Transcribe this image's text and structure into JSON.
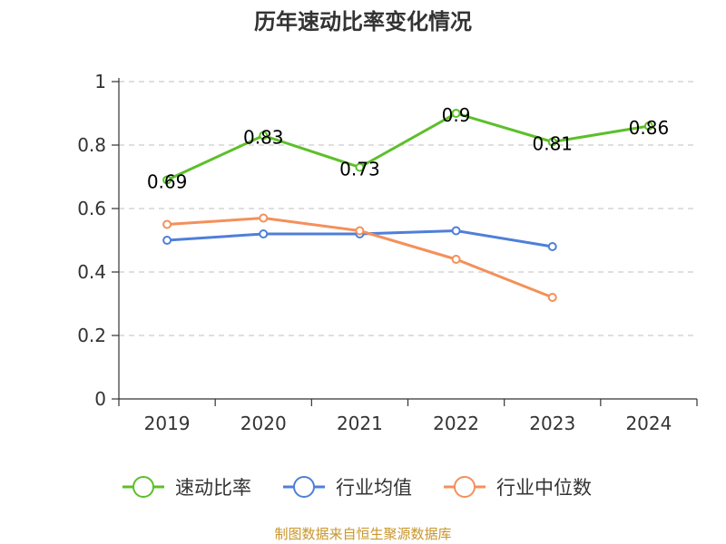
{
  "chart_data": {
    "type": "line",
    "title": "历年速动比率变化情况",
    "categories": [
      "2019",
      "2020",
      "2021",
      "2022",
      "2023",
      "2024"
    ],
    "yticks": [
      "0",
      "0.2",
      "0.4",
      "0.6",
      "0.8",
      "1"
    ],
    "ylim": [
      0,
      1
    ],
    "grid": true,
    "legend_position": "bottom",
    "series": [
      {
        "name": "速动比率",
        "color": "#5cbf2a",
        "values": [
          0.69,
          0.83,
          0.73,
          0.9,
          0.81,
          0.86
        ],
        "labels": [
          "0.69",
          "0.83",
          "0.73",
          "0.9",
          "0.81",
          "0.86"
        ]
      },
      {
        "name": "行业均值",
        "color": "#4f7fd8",
        "values": [
          0.5,
          0.52,
          0.52,
          0.53,
          0.48,
          null
        ]
      },
      {
        "name": "行业中位数",
        "color": "#f4905a",
        "values": [
          0.55,
          0.57,
          0.53,
          0.44,
          0.32,
          null
        ]
      }
    ],
    "source": "制图数据来自恒生聚源数据库",
    "source_color": "#c8962c"
  }
}
